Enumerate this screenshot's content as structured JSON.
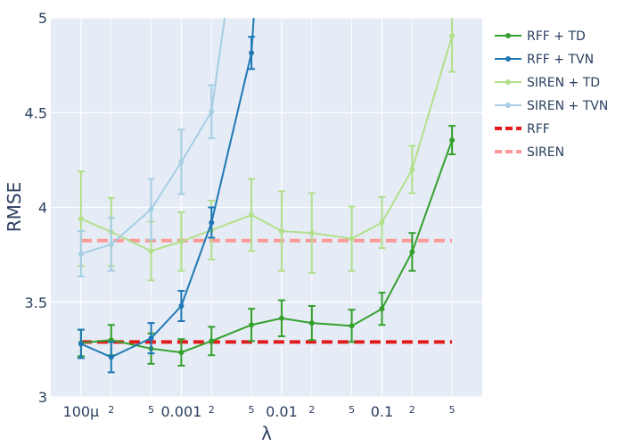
{
  "chart_data": {
    "type": "line",
    "xlabel": "λ",
    "ylabel": "RMSE",
    "x_scale": "log",
    "xlim": [
      5e-05,
      1.0
    ],
    "ylim": [
      3,
      5
    ],
    "grid": true,
    "legend_position": "right",
    "x_ticks": [
      {
        "value": 0.0001,
        "label": "100μ",
        "major": true
      },
      {
        "value": 0.0002,
        "label": "2",
        "major": false
      },
      {
        "value": 0.0005,
        "label": "5",
        "major": false
      },
      {
        "value": 0.001,
        "label": "0.001",
        "major": true
      },
      {
        "value": 0.002,
        "label": "2",
        "major": false
      },
      {
        "value": 0.005,
        "label": "5",
        "major": false
      },
      {
        "value": 0.01,
        "label": "0.01",
        "major": true
      },
      {
        "value": 0.02,
        "label": "2",
        "major": false
      },
      {
        "value": 0.05,
        "label": "5",
        "major": false
      },
      {
        "value": 0.1,
        "label": "0.1",
        "major": true
      },
      {
        "value": 0.2,
        "label": "2",
        "major": false
      },
      {
        "value": 0.5,
        "label": "5",
        "major": false
      }
    ],
    "y_ticks": [
      {
        "value": 3,
        "label": "3"
      },
      {
        "value": 3.5,
        "label": "3.5"
      },
      {
        "value": 4,
        "label": "4"
      },
      {
        "value": 4.5,
        "label": "4.5"
      },
      {
        "value": 5,
        "label": "5"
      }
    ],
    "series": [
      {
        "name": "RFF + TD",
        "color": "#33a02c",
        "style": "line-marker",
        "x": [
          0.0001,
          0.0002,
          0.0005,
          0.001,
          0.002,
          0.005,
          0.01,
          0.02,
          0.05,
          0.1,
          0.2,
          0.5
        ],
        "y": [
          3.285,
          3.3,
          3.255,
          3.235,
          3.295,
          3.38,
          3.415,
          3.39,
          3.375,
          3.465,
          3.765,
          4.355
        ],
        "err": [
          0.07,
          0.08,
          0.08,
          0.07,
          0.075,
          0.085,
          0.095,
          0.09,
          0.085,
          0.085,
          0.1,
          0.075
        ]
      },
      {
        "name": "RFF + TVN",
        "color": "#1f78b4",
        "style": "line-marker",
        "x": [
          0.0001,
          0.0002,
          0.0005,
          0.001,
          0.002,
          0.005,
          0.007
        ],
        "y": [
          3.28,
          3.21,
          3.31,
          3.48,
          3.92,
          4.815,
          6.0
        ],
        "err": [
          0.075,
          0.08,
          0.08,
          0.08,
          0.08,
          0.085,
          null
        ]
      },
      {
        "name": "SIREN + TD",
        "color": "#b2df8a",
        "style": "line-marker",
        "x": [
          0.0001,
          0.0002,
          0.0005,
          0.001,
          0.002,
          0.005,
          0.01,
          0.02,
          0.05,
          0.1,
          0.2,
          0.5
        ],
        "y": [
          3.94,
          3.87,
          3.77,
          3.82,
          3.88,
          3.96,
          3.875,
          3.865,
          3.835,
          3.92,
          4.2,
          4.905
        ],
        "err": [
          0.25,
          0.18,
          0.155,
          0.155,
          0.155,
          0.19,
          0.21,
          0.21,
          0.17,
          0.135,
          0.125,
          0.19
        ]
      },
      {
        "name": "SIREN + TVN",
        "color": "#a6cee3",
        "style": "line-marker",
        "x": [
          0.0001,
          0.0002,
          0.0005,
          0.001,
          0.002,
          0.005
        ],
        "y": [
          3.755,
          3.805,
          3.99,
          4.24,
          4.505,
          6.0
        ],
        "err": [
          0.12,
          0.14,
          0.16,
          0.17,
          0.14,
          null
        ]
      },
      {
        "name": "RFF",
        "color": "#e31a1c",
        "style": "dash",
        "x": [
          0.0001,
          0.5
        ],
        "y": [
          3.29,
          3.29
        ]
      },
      {
        "name": "SIREN",
        "color": "#fb9a99",
        "style": "dash",
        "x": [
          0.0001,
          0.5
        ],
        "y": [
          3.825,
          3.825
        ]
      }
    ]
  }
}
